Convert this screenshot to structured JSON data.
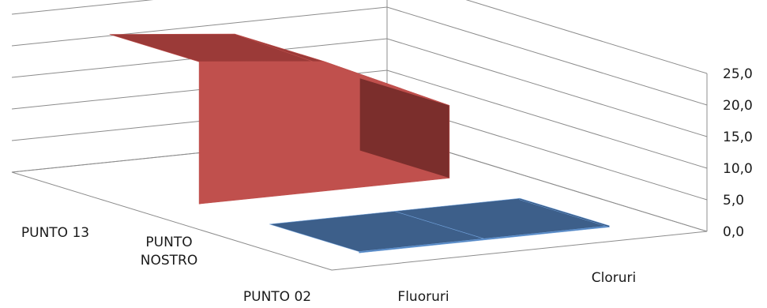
{
  "chart_data": {
    "type": "area",
    "view": "3d",
    "categories": [
      "PUNTO 13",
      "PUNTO NOSTRO",
      "PUNTO 02"
    ],
    "category_lines": [
      [
        "PUNTO 13"
      ],
      [
        "PUNTO",
        "NOSTRO"
      ],
      [
        "PUNTO 02"
      ]
    ],
    "series": [
      {
        "name": "Fluoruri",
        "values": [
          0.2,
          0.2,
          0.2
        ]
      },
      {
        "name": "Cloruri",
        "values": [
          22.5,
          20.5,
          11.5
        ]
      }
    ],
    "ylim": [
      0,
      25
    ],
    "yticks": [
      "0,0",
      "5,0",
      "10,0",
      "15,0",
      "20,0",
      "25,0"
    ],
    "grid": true,
    "legend": "none",
    "colors": {
      "Fluoruri": {
        "front": "#4f81bd",
        "top": "#3d5f8a",
        "side": "#2f4b70",
        "edge": "#6f9fd8"
      },
      "Cloruri": {
        "front": "#c0504d",
        "top": "#9b3a38",
        "side": "#7b2e2c",
        "edge": "#c0504d"
      }
    }
  }
}
